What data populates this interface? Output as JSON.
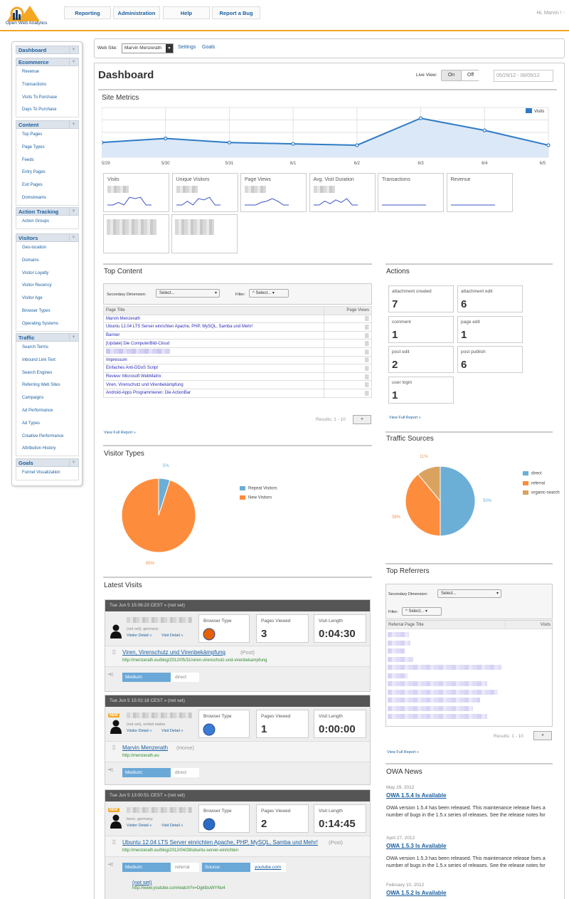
{
  "app": {
    "logo_text": "Open Web Analytics",
    "user_greeting": "Hi, Marvin ! -"
  },
  "nav": [
    "Reporting",
    "Administration",
    "Help",
    "Report a Bug"
  ],
  "sidebar": [
    {
      "title": "Dashboard",
      "items": []
    },
    {
      "title": "Ecommerce",
      "items": [
        "Revenue",
        "Transactions",
        "Visits To Purchase",
        "Days To Purchase"
      ]
    },
    {
      "title": "Content",
      "items": [
        "Top Pages",
        "Page Types",
        "Feeds",
        "Entry Pages",
        "Exit Pages",
        "Domstreams"
      ]
    },
    {
      "title": "Action Tracking",
      "items": [
        "Action Groups"
      ]
    },
    {
      "title": "Visitors",
      "items": [
        "Geo-location",
        "Domains",
        "Visitor Loyalty",
        "Visitor Recency",
        "Visitor Age",
        "Browser Types",
        "Operating Systems"
      ]
    },
    {
      "title": "Traffic",
      "items": [
        "Search Terms",
        "Inbound Link Text",
        "Search Engines",
        "Referring Web Sites",
        "Campaigns",
        "Ad Performance",
        "Ad Types",
        "Creative Performance",
        "Attribution History"
      ]
    },
    {
      "title": "Goals",
      "items": [
        "Funnel Visualization"
      ]
    }
  ],
  "sitebar": {
    "label": "Web Site:",
    "site": "Marvin Menzerath",
    "links": [
      "Settings",
      "Goals"
    ]
  },
  "dashboard": {
    "title": "Dashboard",
    "live_view_label": "Live View:",
    "on": "On",
    "off": "Off",
    "date_range": "05/29/12 - 06/05/12"
  },
  "site_metrics": {
    "title": "Site Metrics",
    "legend": "Visits",
    "metrics": [
      "Visits",
      "Unique Visitors",
      "Page Views",
      "Avg. Visit Duration",
      "Transactions",
      "Revenue"
    ]
  },
  "chart_data": {
    "type": "area",
    "x": [
      "5/29",
      "5/30",
      "5/31",
      "6/1",
      "6/2",
      "6/3",
      "6/4",
      "6/5"
    ],
    "series": [
      {
        "name": "Visits",
        "values": [
          11,
          14,
          11,
          10,
          9,
          29,
          20,
          9
        ]
      }
    ],
    "ylim": [
      0,
      37
    ],
    "grid": true,
    "legend": "top-right"
  },
  "top_content": {
    "title": "Top Content",
    "secondary_label": "Secondary Dimension:",
    "select": "Select...",
    "filter_label": "Filter:",
    "filter": "^ Select... ▾",
    "columns": [
      "Page Title",
      "Page Views"
    ],
    "rows": [
      "Marvin Menzerath",
      "Ubuntu 12.04 LTS Server einrichten  Apache, PHP, MySQL, Samba und Mehr!",
      "Banner",
      "[Update] Die ComputerBild-Cloud",
      "",
      "Impressum",
      "Einfaches Anti-DDoS Script",
      "Review: Microsoft WebMatrix",
      "Viren, Virenschutz und Virenbekämpfung",
      "Android-Apps Programmieren: Die ActionBar"
    ],
    "results": "Results: 1 - 10",
    "next": "»",
    "view_full": "View Full Report »"
  },
  "actions": {
    "title": "Actions",
    "items": [
      {
        "label": "attachment created",
        "value": "7"
      },
      {
        "label": "attachment edit",
        "value": "6"
      },
      {
        "label": "comment",
        "value": "1"
      },
      {
        "label": "page edit",
        "value": "1"
      },
      {
        "label": "post edit",
        "value": "2"
      },
      {
        "label": "post publish",
        "value": "6"
      },
      {
        "label": "user login",
        "value": "1"
      }
    ],
    "view_full": "View Full Report »"
  },
  "visitor_types": {
    "title": "Visitor Types",
    "repeat_label": "Repeat Visitors",
    "new_label": "New Visitors",
    "repeat_pct": "5%",
    "new_pct": "95%",
    "repeat_color": "#6baed6",
    "new_color": "#fd8d3c",
    "repeat_value": 5,
    "new_value": 95
  },
  "traffic_sources": {
    "title": "Traffic Sources",
    "items": [
      {
        "label": "direct",
        "pct": "50%",
        "value": 50,
        "color": "#6baed6"
      },
      {
        "label": "referral",
        "pct": "39%",
        "value": 39,
        "color": "#fd8d3c"
      },
      {
        "label": "organic-search",
        "pct": "11%",
        "value": 11,
        "color": "#d9a35f"
      }
    ]
  },
  "latest_visits": {
    "title": "Latest Visits",
    "visits": [
      {
        "header": "Tue Jun 5 15:06:23 CEST » (not set)",
        "loc": "(not set), germany",
        "new": false,
        "browser_label": "Browser Type",
        "pages_label": "Pages Viewed",
        "pages": "3",
        "length_label": "Visit Length",
        "length": "0:04:30",
        "detail": "Visitor Detail »",
        "visit_detail": "Visit Detail »",
        "page_title": "Viren, Virenschutz und Virenbekämpfung",
        "page_type": "(Post)",
        "page_url": "http://menzerath.eu/blog/2012/05/31/viren-virenschutz-und-virenbekampfung",
        "medium_label": "Medium:",
        "medium": "direct"
      },
      {
        "header": "Tue Jun 5 15:02:18 CEST » (not set)",
        "loc": "(not set), united states",
        "new": true,
        "browser_label": "Browser Type",
        "pages_label": "Pages Viewed",
        "pages": "1",
        "length_label": "Visit Length",
        "length": "0:00:00",
        "detail": "Visitor Detail »",
        "visit_detail": "Visit Detail »",
        "page_title": "Marvin Menzerath",
        "page_type": "(Home)",
        "page_url": "http://menzerath.eu",
        "medium_label": "Medium:",
        "medium": "direct"
      },
      {
        "header": "Tue Jun 5 13:00:51 CEST » (not set)",
        "loc": "bonn, germany",
        "new": true,
        "browser_label": "Browser Type",
        "pages_label": "Pages Viewed",
        "pages": "2",
        "length_label": "Visit Length",
        "length": "0:14:45",
        "detail": "Visitor Detail »",
        "visit_detail": "Visit Detail »",
        "page_title": "Ubuntu 12.04 LTS Server einrichten  Apache, PHP, MySQL, Samba und Mehr!",
        "page_type": "(Post)",
        "page_url": "http://menzerath.eu/blog/2012/04/28/ubuntu-server-einrichten",
        "medium_label": "Medium:",
        "medium": "referral",
        "source_label": "Source:",
        "source": "youtube.com",
        "ref_title": "(not set)",
        "ref_url": "http://www.youtube.com/watch?v=DgkIbuWYNo4"
      }
    ],
    "new_badge": "NEW"
  },
  "top_referrers": {
    "title": "Top Referrers",
    "secondary_label": "Secondary Dimension:",
    "select": "Select...",
    "filter_label": "Filter:",
    "filter": "^ Select... ▾",
    "columns": [
      "Referral Page Title",
      "Visits"
    ],
    "results": "Results: 1 - 10",
    "next": "»",
    "view_full": "View Full Report »"
  },
  "news": {
    "title": "OWA News",
    "items": [
      {
        "date": "May 29, 2012",
        "title": "OWA 1.5.4 Is Available",
        "body": "OWA version 1.5.4 has been released. This maintenance release fixes a number of bugs in the 1.5.x series of releases. See the release notes for"
      },
      {
        "date": "April 27, 2012",
        "title": "OWA 1.5.3 Is Available",
        "body": "OWA version 1.5.3 has been released. This maintenance release fixes a number of bugs in the 1.5.x series of releases. See the release notes for"
      },
      {
        "date": "February 10, 2012",
        "title": "OWA 1.5.2 Is Available",
        "body": ""
      }
    ]
  }
}
